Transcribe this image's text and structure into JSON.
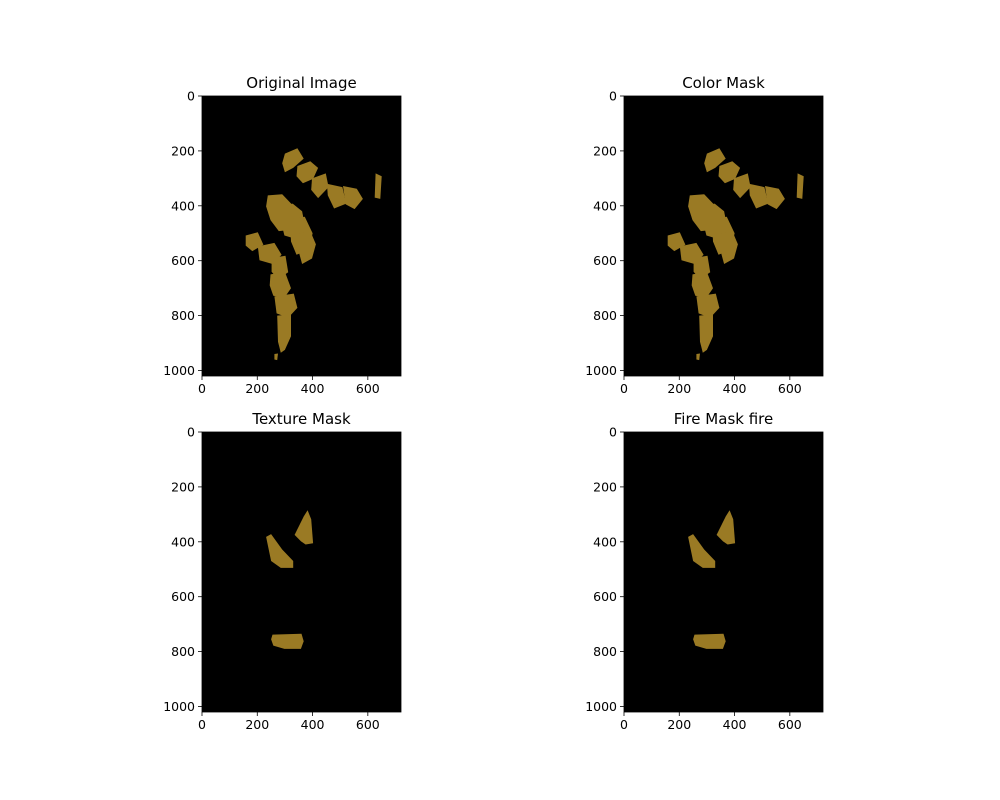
{
  "chart_data": [
    {
      "type": "image",
      "title": "Original Image",
      "xlim": [
        0,
        720
      ],
      "ylim": [
        1020,
        0
      ],
      "xticks": [
        0,
        200,
        400,
        600
      ],
      "yticks": [
        0,
        200,
        400,
        600,
        800,
        1000
      ],
      "background": "#000000",
      "mask_color": "#9a7a24",
      "regions": [
        {
          "points": [
            [
              300,
              210
            ],
            [
              345,
              190
            ],
            [
              368,
              228
            ],
            [
              330,
              262
            ],
            [
              300,
              278
            ],
            [
              290,
              245
            ]
          ]
        },
        {
          "points": [
            [
              345,
              255
            ],
            [
              392,
              238
            ],
            [
              420,
              262
            ],
            [
              402,
              302
            ],
            [
              365,
              318
            ],
            [
              342,
              292
            ]
          ]
        },
        {
          "points": [
            [
              398,
              300
            ],
            [
              448,
              282
            ],
            [
              458,
              332
            ],
            [
              420,
              372
            ],
            [
              395,
              342
            ]
          ]
        },
        {
          "points": [
            [
              452,
              320
            ],
            [
              508,
              332
            ],
            [
              522,
              392
            ],
            [
              478,
              410
            ],
            [
              455,
              362
            ]
          ]
        },
        {
          "points": [
            [
              510,
              328
            ],
            [
              560,
              338
            ],
            [
              582,
              375
            ],
            [
              552,
              412
            ],
            [
              520,
              395
            ]
          ]
        },
        {
          "points": [
            [
              628,
              282
            ],
            [
              650,
              292
            ],
            [
              645,
              375
            ],
            [
              625,
              370
            ]
          ]
        },
        {
          "points": [
            [
              238,
              362
            ],
            [
              290,
              358
            ],
            [
              330,
              400
            ],
            [
              348,
              452
            ],
            [
              318,
              488
            ],
            [
              278,
              492
            ],
            [
              248,
              452
            ],
            [
              232,
              402
            ]
          ]
        },
        {
          "points": [
            [
              282,
              402
            ],
            [
              328,
              392
            ],
            [
              362,
              420
            ],
            [
              372,
              470
            ],
            [
              338,
              520
            ],
            [
              298,
              508
            ],
            [
              285,
              455
            ]
          ]
        },
        {
          "points": [
            [
              318,
              448
            ],
            [
              372,
              440
            ],
            [
              400,
              500
            ],
            [
              388,
              560
            ],
            [
              342,
              578
            ],
            [
              322,
              530
            ]
          ]
        },
        {
          "points": [
            [
              352,
              500
            ],
            [
              392,
              492
            ],
            [
              412,
              540
            ],
            [
              398,
              592
            ],
            [
              362,
              612
            ],
            [
              348,
              560
            ]
          ]
        },
        {
          "points": [
            [
              158,
              508
            ],
            [
              202,
              496
            ],
            [
              222,
              542
            ],
            [
              182,
              565
            ],
            [
              158,
              545
            ]
          ]
        },
        {
          "points": [
            [
              202,
              548
            ],
            [
              262,
              535
            ],
            [
              288,
              578
            ],
            [
              255,
              612
            ],
            [
              208,
              598
            ]
          ]
        },
        {
          "points": [
            [
              252,
              590
            ],
            [
              302,
              582
            ],
            [
              312,
              642
            ],
            [
              275,
              668
            ],
            [
              252,
              640
            ]
          ]
        },
        {
          "points": [
            [
              248,
              650
            ],
            [
              300,
              640
            ],
            [
              322,
              700
            ],
            [
              298,
              735
            ],
            [
              258,
              728
            ],
            [
              245,
              690
            ]
          ]
        },
        {
          "points": [
            [
              262,
              730
            ],
            [
              332,
              720
            ],
            [
              345,
              772
            ],
            [
              312,
              808
            ],
            [
              270,
              792
            ]
          ]
        },
        {
          "points": [
            [
              272,
              800
            ],
            [
              322,
              795
            ],
            [
              322,
              875
            ],
            [
              300,
              925
            ],
            [
              285,
              935
            ],
            [
              275,
              895
            ]
          ]
        },
        {
          "points": [
            [
              262,
              940
            ],
            [
              275,
              938
            ],
            [
              272,
              962
            ],
            [
              262,
              960
            ]
          ]
        }
      ]
    },
    {
      "type": "image",
      "title": "Color Mask",
      "xlim": [
        0,
        720
      ],
      "ylim": [
        1020,
        0
      ],
      "xticks": [
        0,
        200,
        400,
        600
      ],
      "yticks": [
        0,
        200,
        400,
        600,
        800,
        1000
      ],
      "background": "#000000",
      "mask_color": "#9a7a24",
      "regions": [
        {
          "points": [
            [
              300,
              210
            ],
            [
              345,
              190
            ],
            [
              368,
              228
            ],
            [
              330,
              262
            ],
            [
              300,
              278
            ],
            [
              290,
              245
            ]
          ]
        },
        {
          "points": [
            [
              345,
              255
            ],
            [
              392,
              238
            ],
            [
              420,
              262
            ],
            [
              402,
              302
            ],
            [
              365,
              318
            ],
            [
              342,
              292
            ]
          ]
        },
        {
          "points": [
            [
              398,
              300
            ],
            [
              448,
              282
            ],
            [
              458,
              332
            ],
            [
              420,
              372
            ],
            [
              395,
              342
            ]
          ]
        },
        {
          "points": [
            [
              452,
              320
            ],
            [
              508,
              332
            ],
            [
              522,
              392
            ],
            [
              478,
              410
            ],
            [
              455,
              362
            ]
          ]
        },
        {
          "points": [
            [
              510,
              328
            ],
            [
              560,
              338
            ],
            [
              582,
              375
            ],
            [
              552,
              412
            ],
            [
              520,
              395
            ]
          ]
        },
        {
          "points": [
            [
              628,
              282
            ],
            [
              650,
              292
            ],
            [
              645,
              375
            ],
            [
              625,
              370
            ]
          ]
        },
        {
          "points": [
            [
              238,
              362
            ],
            [
              290,
              358
            ],
            [
              330,
              400
            ],
            [
              348,
              452
            ],
            [
              318,
              488
            ],
            [
              278,
              492
            ],
            [
              248,
              452
            ],
            [
              232,
              402
            ]
          ]
        },
        {
          "points": [
            [
              282,
              402
            ],
            [
              328,
              392
            ],
            [
              362,
              420
            ],
            [
              372,
              470
            ],
            [
              338,
              520
            ],
            [
              298,
              508
            ],
            [
              285,
              455
            ]
          ]
        },
        {
          "points": [
            [
              318,
              448
            ],
            [
              372,
              440
            ],
            [
              400,
              500
            ],
            [
              388,
              560
            ],
            [
              342,
              578
            ],
            [
              322,
              530
            ]
          ]
        },
        {
          "points": [
            [
              352,
              500
            ],
            [
              392,
              492
            ],
            [
              412,
              540
            ],
            [
              398,
              592
            ],
            [
              362,
              612
            ],
            [
              348,
              560
            ]
          ]
        },
        {
          "points": [
            [
              158,
              508
            ],
            [
              202,
              496
            ],
            [
              222,
              542
            ],
            [
              182,
              565
            ],
            [
              158,
              545
            ]
          ]
        },
        {
          "points": [
            [
              202,
              548
            ],
            [
              262,
              535
            ],
            [
              288,
              578
            ],
            [
              255,
              612
            ],
            [
              208,
              598
            ]
          ]
        },
        {
          "points": [
            [
              252,
              590
            ],
            [
              302,
              582
            ],
            [
              312,
              642
            ],
            [
              275,
              668
            ],
            [
              252,
              640
            ]
          ]
        },
        {
          "points": [
            [
              248,
              650
            ],
            [
              300,
              640
            ],
            [
              322,
              700
            ],
            [
              298,
              735
            ],
            [
              258,
              728
            ],
            [
              245,
              690
            ]
          ]
        },
        {
          "points": [
            [
              262,
              730
            ],
            [
              332,
              720
            ],
            [
              345,
              772
            ],
            [
              312,
              808
            ],
            [
              270,
              792
            ]
          ]
        },
        {
          "points": [
            [
              272,
              800
            ],
            [
              322,
              795
            ],
            [
              322,
              875
            ],
            [
              300,
              925
            ],
            [
              285,
              935
            ],
            [
              275,
              895
            ]
          ]
        },
        {
          "points": [
            [
              262,
              940
            ],
            [
              275,
              938
            ],
            [
              272,
              962
            ],
            [
              262,
              960
            ]
          ]
        }
      ]
    },
    {
      "type": "image",
      "title": "Texture Mask",
      "xlim": [
        0,
        720
      ],
      "ylim": [
        1020,
        0
      ],
      "xticks": [
        0,
        200,
        400,
        600
      ],
      "yticks": [
        0,
        200,
        400,
        600,
        800,
        1000
      ],
      "background": "#000000",
      "mask_color": "#9a7a24",
      "regions": [
        {
          "points": [
            [
              335,
              375
            ],
            [
              368,
              308
            ],
            [
              382,
              285
            ],
            [
              395,
              318
            ],
            [
              402,
              405
            ],
            [
              375,
              410
            ],
            [
              358,
              398
            ]
          ]
        },
        {
          "points": [
            [
              232,
              382
            ],
            [
              250,
              372
            ],
            [
              290,
              428
            ],
            [
              330,
              470
            ],
            [
              330,
              495
            ],
            [
              285,
              495
            ],
            [
              250,
              470
            ]
          ]
        },
        {
          "points": [
            [
              255,
              738
            ],
            [
              360,
              735
            ],
            [
              368,
              762
            ],
            [
              358,
              790
            ],
            [
              298,
              790
            ],
            [
              258,
              778
            ],
            [
              250,
              755
            ]
          ]
        }
      ]
    },
    {
      "type": "image",
      "title": "Fire Mask fire",
      "xlim": [
        0,
        720
      ],
      "ylim": [
        1020,
        0
      ],
      "xticks": [
        0,
        200,
        400,
        600
      ],
      "yticks": [
        0,
        200,
        400,
        600,
        800,
        1000
      ],
      "background": "#000000",
      "mask_color": "#9a7a24",
      "regions": [
        {
          "points": [
            [
              335,
              375
            ],
            [
              368,
              308
            ],
            [
              382,
              285
            ],
            [
              395,
              318
            ],
            [
              402,
              405
            ],
            [
              375,
              410
            ],
            [
              358,
              398
            ]
          ]
        },
        {
          "points": [
            [
              232,
              382
            ],
            [
              250,
              372
            ],
            [
              290,
              428
            ],
            [
              330,
              470
            ],
            [
              330,
              495
            ],
            [
              285,
              495
            ],
            [
              250,
              470
            ]
          ]
        },
        {
          "points": [
            [
              255,
              738
            ],
            [
              360,
              735
            ],
            [
              368,
              762
            ],
            [
              358,
              790
            ],
            [
              298,
              790
            ],
            [
              258,
              778
            ],
            [
              250,
              755
            ]
          ]
        }
      ]
    }
  ]
}
